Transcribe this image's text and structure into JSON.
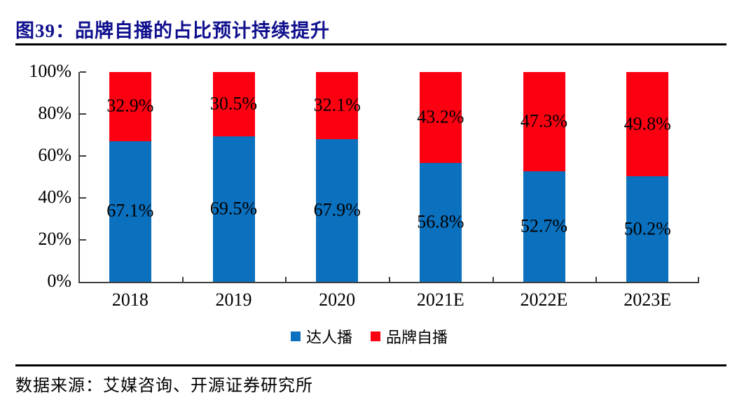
{
  "header": {
    "title": "图39：品牌自播的占比预计持续提升"
  },
  "chart_data": {
    "type": "bar",
    "stacked": true,
    "title": "图39：品牌自播的占比预计持续提升",
    "categories": [
      "2018",
      "2019",
      "2020",
      "2021E",
      "2022E",
      "2023E"
    ],
    "series": [
      {
        "name": "达人播",
        "color": "#0B70BD",
        "values": [
          67.1,
          69.5,
          67.9,
          56.8,
          52.7,
          50.2
        ]
      },
      {
        "name": "品牌自播",
        "color": "#FC0011",
        "values": [
          32.9,
          30.5,
          32.1,
          43.2,
          47.3,
          49.8
        ]
      }
    ],
    "value_suffix": "%",
    "ylim": [
      0,
      100
    ],
    "ytick_labels": [
      "100%",
      "80%",
      "60%",
      "40%",
      "20%",
      "0%"
    ],
    "grid": false,
    "legend_position": "bottom",
    "data_labels": true
  },
  "footer": {
    "source": "数据来源：艾媒咨询、开源证券研究所"
  },
  "colors": {
    "title_navy": "#10108E",
    "axis_gray": "#3F3F3F",
    "bar_blue": "#0B70BD",
    "bar_red": "#FC0011"
  }
}
